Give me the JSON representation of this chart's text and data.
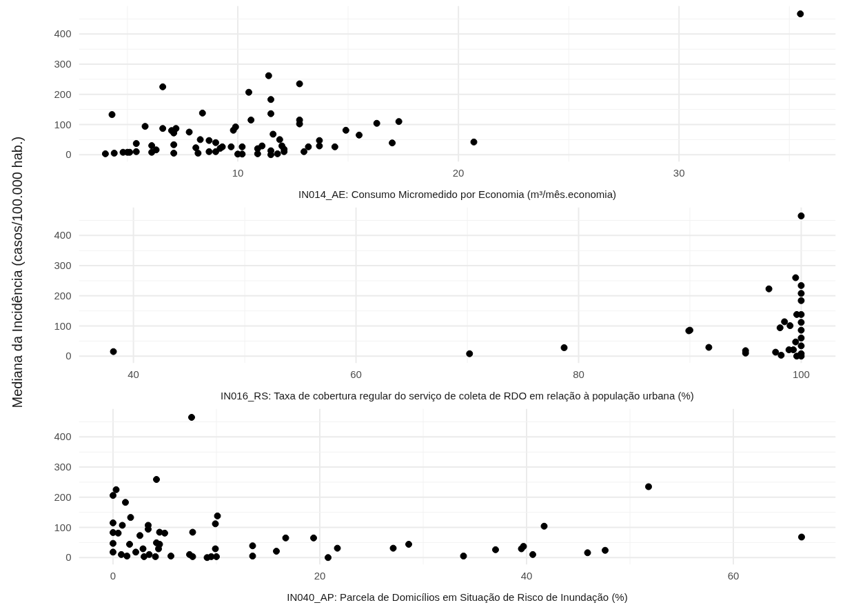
{
  "chart_data": [
    {
      "type": "scatter",
      "xlabel": "IN014_AE: Consumo Micromedido por Economia (m³/mês.economia)",
      "marker": "circle",
      "grid": true,
      "xlim": [
        2.8,
        37.1
      ],
      "ylim": [
        -23.5,
        493.5
      ],
      "xticks": [
        10,
        20,
        30
      ],
      "yticks": [
        0,
        100,
        200,
        300,
        400
      ],
      "series": [
        {
          "color": "#000000",
          "x": [
            4.0,
            4.4,
            4.3,
            4.8,
            5.0,
            5.1,
            5.4,
            5.4,
            5.8,
            6.1,
            6.1,
            6.3,
            6.6,
            6.6,
            7.0,
            7.2,
            7.1,
            7.1,
            7.1,
            7.8,
            8.1,
            8.2,
            8.4,
            8.3,
            8.7,
            8.7,
            9.0,
            9.0,
            9.2,
            9.3,
            9.7,
            9.9,
            9.8,
            10.0,
            10.2,
            10.2,
            10.5,
            10.6,
            10.9,
            10.9,
            11.1,
            11.4,
            11.5,
            11.5,
            11.6,
            11.5,
            11.5,
            11.8,
            11.9,
            12.0,
            12.1,
            12.1,
            12.8,
            12.8,
            12.8,
            13.0,
            13.2,
            13.7,
            13.7,
            14.4,
            14.9,
            15.5,
            16.3,
            17.0,
            17.3,
            20.7,
            35.5
          ],
          "values": [
            3,
            5,
            133,
            8,
            8,
            8,
            10,
            37,
            94,
            8,
            30,
            16,
            225,
            87,
            80,
            87,
            72,
            33,
            5,
            75,
            23,
            5,
            138,
            50,
            47,
            10,
            40,
            10,
            21,
            26,
            26,
            92,
            81,
            2,
            26,
            2,
            207,
            115,
            3,
            20,
            29,
            262,
            183,
            136,
            68,
            13,
            0,
            3,
            50,
            29,
            10,
            18,
            235,
            115,
            102,
            10,
            26,
            47,
            29,
            26,
            81,
            65,
            104,
            39,
            110,
            42,
            467
          ]
        }
      ]
    },
    {
      "type": "scatter",
      "xlabel": "IN016_RS: Taxa de cobertura regular do serviço de coleta de RDO em relação à população urbana (%)",
      "ylabel": "Mediana da Incidência (casos/100.000 hab.)",
      "marker": "circle",
      "grid": true,
      "xlim": [
        35.1,
        103.1
      ],
      "ylim": [
        -23.5,
        493.5
      ],
      "xticks": [
        40,
        60,
        80,
        100
      ],
      "yticks": [
        0,
        100,
        200,
        300,
        400
      ],
      "series": [
        {
          "color": "#000000",
          "x": [
            38.2,
            70.2,
            78.7,
            90.0,
            89.9,
            91.7,
            95.0,
            95.0,
            100,
            99.5,
            97.1,
            100,
            100,
            100,
            99.6,
            100,
            98.5,
            99.0,
            98.1,
            100,
            100,
            100,
            99.5,
            100,
            98.9,
            97.7,
            98.2,
            100,
            99.6,
            100,
            99.3
          ],
          "values": [
            15,
            8,
            28,
            86,
            84,
            29,
            10,
            18,
            465,
            260,
            223,
            234,
            208,
            184,
            138,
            138,
            114,
            101,
            94,
            112,
            86,
            60,
            47,
            34,
            21,
            13,
            3,
            8,
            0,
            0,
            21
          ]
        }
      ]
    },
    {
      "type": "scatter",
      "xlabel": "IN040_AP: Parcela de Domicílios em Situação de Risco de Inundação (%)",
      "marker": "circle",
      "grid": true,
      "xlim": [
        -3.3,
        69.9
      ],
      "ylim": [
        -23.5,
        493.5
      ],
      "xticks": [
        0,
        20,
        40,
        60
      ],
      "yticks": [
        0,
        100,
        200,
        300,
        400
      ],
      "series": [
        {
          "color": "#000000",
          "x": [
            7.6,
            4.2,
            0.3,
            0,
            1.2,
            1.7,
            0,
            0.9,
            0,
            0.5,
            3.4,
            3.4,
            2.6,
            4.5,
            5.0,
            7.7,
            10.1,
            9.9,
            0,
            0,
            0.8,
            1.6,
            1.35,
            2.2,
            2.9,
            3.0,
            3.5,
            4.1,
            4.2,
            4.5,
            4.4,
            5.6,
            7.4,
            7.7,
            9.1,
            9.5,
            9.9,
            10.0,
            13.5,
            13.5,
            15.8,
            16.7,
            19.4,
            20.8,
            21.7,
            27.1,
            28.6,
            33.9,
            37.0,
            39.5,
            39.7,
            40.6,
            41.7,
            45.9,
            47.6,
            51.8,
            66.6
          ],
          "values": [
            465,
            259,
            225,
            206,
            183,
            133,
            115,
            107,
            83,
            81,
            107,
            94,
            73,
            84,
            81,
            84,
            138,
            112,
            47,
            18,
            10,
            44,
            5,
            18,
            29,
            3,
            10,
            3,
            49,
            44,
            29,
            5,
            10,
            3,
            0,
            3,
            29,
            3,
            39,
            5,
            21,
            65,
            65,
            0,
            31,
            31,
            44,
            5,
            26,
            29,
            37,
            10,
            104,
            16,
            24,
            235,
            68
          ]
        }
      ]
    }
  ]
}
